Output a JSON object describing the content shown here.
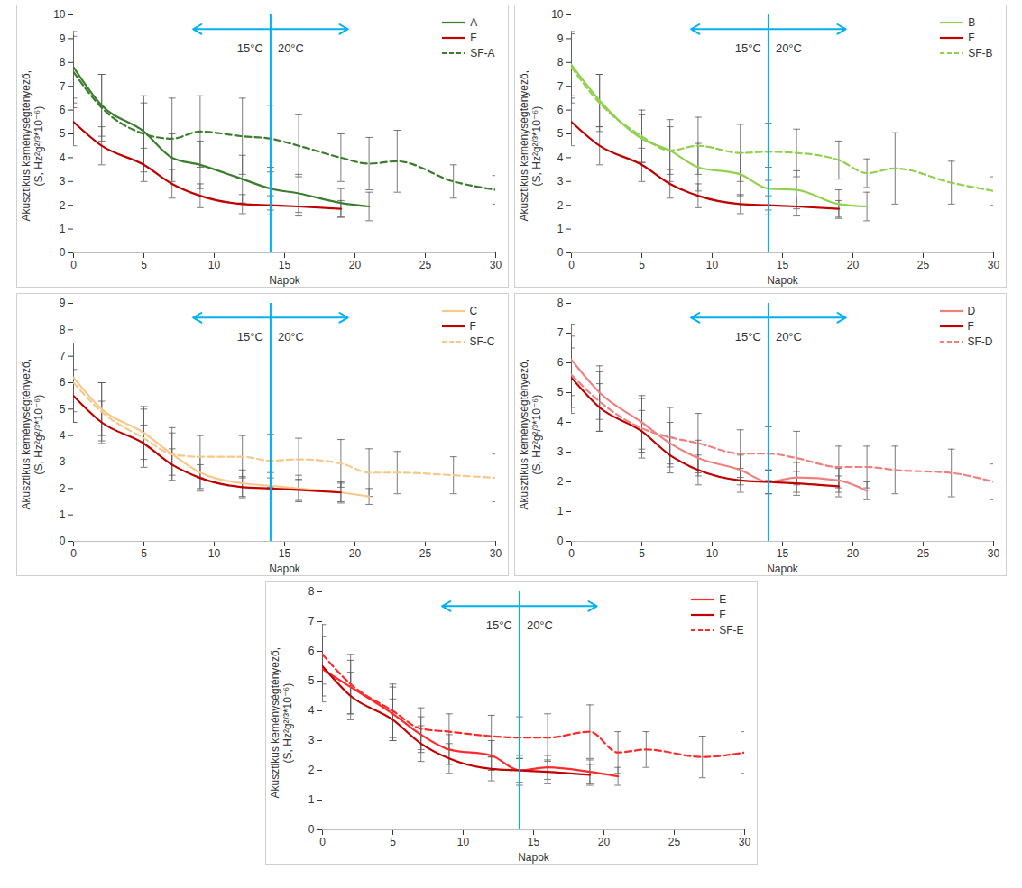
{
  "chart_data": [
    {
      "type": "line",
      "x_label": "Napok",
      "y_label": "Akusztikus keménységtényező, (S, Hz²g²/³*10⁻⁶)",
      "xlim": [
        0,
        30
      ],
      "xticks": [
        0,
        5,
        10,
        15,
        20,
        25,
        30
      ],
      "ylim": [
        0,
        10
      ],
      "yticks": [
        0,
        1,
        2,
        3,
        4,
        5,
        6,
        7,
        8,
        9,
        10
      ],
      "grid": false,
      "legend": "top-right",
      "annotation": {
        "x": 14,
        "from_x": 8.5,
        "to_x": 19.5,
        "labels": [
          "15°C",
          "20°C"
        ],
        "color": "#00b0f0"
      },
      "series": [
        {
          "name": "A",
          "color": "#3a7d2c",
          "line_style": "solid",
          "x": [
            0,
            2,
            5,
            7,
            9,
            12,
            14,
            16,
            19,
            21
          ],
          "values": [
            7.8,
            6.2,
            5.1,
            4.0,
            3.7,
            3.1,
            2.7,
            2.5,
            2.1,
            1.95
          ],
          "errors": [
            1.5,
            1.3,
            1.2,
            1.0,
            1.0,
            1.0,
            0.9,
            0.8,
            0.6,
            0.6
          ]
        },
        {
          "name": "F",
          "color": "#c00000",
          "line_style": "solid",
          "x": [
            0,
            2,
            5,
            7,
            9,
            12,
            14,
            16,
            19
          ],
          "values": [
            5.5,
            4.5,
            3.7,
            2.9,
            2.4,
            2.05,
            2.0,
            1.95,
            1.85
          ],
          "errors": [
            1.0,
            0.8,
            0.7,
            0.6,
            0.5,
            0.4,
            0.4,
            0.4,
            0.35
          ]
        },
        {
          "name": "SF-A",
          "color": "#3a7d2c",
          "line_style": "dashed",
          "x": [
            0,
            2,
            5,
            7,
            9,
            12,
            14,
            16,
            19,
            21,
            23,
            27,
            30
          ],
          "values": [
            7.6,
            6.1,
            5.0,
            4.8,
            5.1,
            4.9,
            4.8,
            4.5,
            4.0,
            3.75,
            3.85,
            3.0,
            2.65
          ],
          "errors": [
            1.5,
            1.4,
            1.6,
            1.7,
            1.5,
            1.6,
            1.4,
            1.3,
            1.0,
            1.1,
            1.3,
            0.7,
            0.6
          ]
        }
      ]
    },
    {
      "type": "line",
      "x_label": "Napok",
      "y_label": "Akusztikus keménységtényező, (S, Hz²g²/³*10⁻⁶)",
      "xlim": [
        0,
        30
      ],
      "xticks": [
        0,
        5,
        10,
        15,
        20,
        25,
        30
      ],
      "ylim": [
        0,
        10
      ],
      "yticks": [
        0,
        1,
        2,
        3,
        4,
        5,
        6,
        7,
        8,
        9,
        10
      ],
      "grid": false,
      "legend": "top-right",
      "annotation": {
        "x": 14,
        "from_x": 8.5,
        "to_x": 19.5,
        "labels": [
          "15°C",
          "20°C"
        ],
        "color": "#00b0f0"
      },
      "series": [
        {
          "name": "B",
          "color": "#92d050",
          "line_style": "solid",
          "x": [
            0,
            2,
            5,
            7,
            9,
            12,
            14,
            16,
            19,
            21
          ],
          "values": [
            7.9,
            6.4,
            4.8,
            4.3,
            3.6,
            3.3,
            2.7,
            2.65,
            2.05,
            1.95
          ],
          "errors": [
            1.3,
            1.1,
            1.0,
            1.0,
            1.0,
            0.9,
            0.9,
            0.8,
            0.6,
            0.6
          ]
        },
        {
          "name": "F",
          "color": "#c00000",
          "line_style": "solid",
          "x": [
            0,
            2,
            5,
            7,
            9,
            12,
            14,
            16,
            19
          ],
          "values": [
            5.5,
            4.5,
            3.7,
            2.9,
            2.4,
            2.05,
            2.0,
            1.95,
            1.85
          ],
          "errors": [
            1.0,
            0.8,
            0.7,
            0.6,
            0.5,
            0.4,
            0.4,
            0.4,
            0.35
          ]
        },
        {
          "name": "SF-B",
          "color": "#92d050",
          "line_style": "dashed",
          "x": [
            0,
            2,
            5,
            7,
            9,
            12,
            14,
            16,
            19,
            21,
            23,
            27,
            30
          ],
          "values": [
            7.8,
            6.3,
            4.9,
            4.3,
            4.5,
            4.2,
            4.25,
            4.2,
            3.9,
            3.35,
            3.55,
            2.95,
            2.6
          ],
          "errors": [
            1.5,
            1.2,
            1.1,
            1.3,
            1.2,
            1.2,
            1.2,
            1.0,
            0.8,
            0.6,
            1.5,
            0.9,
            0.6
          ]
        }
      ]
    },
    {
      "type": "line",
      "x_label": "Napok",
      "y_label": "Akusztikus keménységtényező, (S, Hz²g²/³*10⁻⁶)",
      "xlim": [
        0,
        30
      ],
      "xticks": [
        0,
        5,
        10,
        15,
        20,
        25,
        30
      ],
      "ylim": [
        0,
        9
      ],
      "yticks": [
        0,
        1,
        2,
        3,
        4,
        5,
        6,
        7,
        8,
        9
      ],
      "grid": false,
      "legend": "top-right",
      "annotation": {
        "x": 14,
        "from_x": 8.5,
        "to_x": 19.5,
        "labels": [
          "15°C",
          "20°C"
        ],
        "color": "#00b0f0"
      },
      "series": [
        {
          "name": "C",
          "color": "#f8c88a",
          "line_style": "solid",
          "x": [
            0,
            2,
            5,
            7,
            9,
            12,
            14,
            16,
            19,
            21
          ],
          "values": [
            6.2,
            5.0,
            4.1,
            3.3,
            2.6,
            2.2,
            2.1,
            2.0,
            1.85,
            1.7
          ],
          "errors": [
            1.3,
            1.0,
            1.0,
            0.8,
            0.6,
            0.5,
            0.5,
            0.5,
            0.4,
            0.3
          ]
        },
        {
          "name": "F",
          "color": "#c00000",
          "line_style": "solid",
          "x": [
            0,
            2,
            5,
            7,
            9,
            12,
            14,
            16,
            19
          ],
          "values": [
            5.5,
            4.5,
            3.7,
            2.9,
            2.4,
            2.05,
            2.0,
            1.95,
            1.85
          ],
          "errors": [
            1.0,
            0.8,
            0.7,
            0.6,
            0.5,
            0.4,
            0.4,
            0.4,
            0.35
          ]
        },
        {
          "name": "SF-C",
          "color": "#f8c88a",
          "line_style": "dashed",
          "x": [
            0,
            2,
            5,
            7,
            9,
            12,
            14,
            16,
            19,
            21,
            23,
            27,
            30
          ],
          "values": [
            6.0,
            4.9,
            3.9,
            3.3,
            3.2,
            3.2,
            3.05,
            3.1,
            2.95,
            2.6,
            2.6,
            2.5,
            2.4
          ],
          "errors": [
            1.5,
            1.1,
            1.1,
            1.0,
            0.8,
            0.8,
            1.0,
            0.8,
            0.9,
            0.9,
            0.8,
            0.7,
            0.9
          ]
        }
      ]
    },
    {
      "type": "line",
      "x_label": "Napok",
      "y_label": "Akusztikus keménységtényező, (S, Hz²g²/³*10⁻⁶)",
      "xlim": [
        0,
        30
      ],
      "xticks": [
        0,
        5,
        10,
        15,
        20,
        25,
        30
      ],
      "ylim": [
        0,
        8
      ],
      "yticks": [
        0,
        1,
        2,
        3,
        4,
        5,
        6,
        7,
        8
      ],
      "grid": false,
      "legend": "top-right",
      "annotation": {
        "x": 14,
        "from_x": 8.5,
        "to_x": 19.5,
        "labels": [
          "15°C",
          "20°C"
        ],
        "color": "#00b0f0"
      },
      "series": [
        {
          "name": "D",
          "color": "#f08080",
          "line_style": "solid",
          "x": [
            0,
            2,
            5,
            7,
            9,
            12,
            14,
            16,
            19,
            21
          ],
          "values": [
            6.1,
            5.0,
            4.0,
            3.3,
            2.8,
            2.4,
            2.0,
            2.15,
            2.05,
            1.7
          ],
          "errors": [
            1.2,
            0.9,
            0.9,
            0.7,
            0.6,
            0.5,
            0.4,
            0.5,
            0.4,
            0.3
          ]
        },
        {
          "name": "F",
          "color": "#c00000",
          "line_style": "solid",
          "x": [
            0,
            2,
            5,
            7,
            9,
            12,
            14,
            16,
            19
          ],
          "values": [
            5.5,
            4.5,
            3.7,
            2.9,
            2.4,
            2.05,
            2.0,
            1.95,
            1.85
          ],
          "errors": [
            1.0,
            0.8,
            0.7,
            0.6,
            0.5,
            0.4,
            0.4,
            0.4,
            0.35
          ]
        },
        {
          "name": "SF-D",
          "color": "#f08080",
          "line_style": "dashed",
          "x": [
            0,
            2,
            5,
            7,
            9,
            12,
            14,
            16,
            19,
            21,
            23,
            27,
            30
          ],
          "values": [
            5.6,
            4.7,
            3.8,
            3.5,
            3.3,
            2.95,
            2.95,
            2.8,
            2.5,
            2.5,
            2.4,
            2.3,
            2.0
          ],
          "errors": [
            1.3,
            1.0,
            1.0,
            1.0,
            1.0,
            0.8,
            0.9,
            0.9,
            0.7,
            0.7,
            0.8,
            0.8,
            0.6
          ]
        }
      ]
    },
    {
      "type": "line",
      "x_label": "Napok",
      "y_label": "Akusztikus keménységtényező, (S, Hz²g²/³*10⁻⁶)",
      "xlim": [
        0,
        30
      ],
      "xticks": [
        0,
        5,
        10,
        15,
        20,
        25,
        30
      ],
      "ylim": [
        0,
        8
      ],
      "yticks": [
        0,
        1,
        2,
        3,
        4,
        5,
        6,
        7,
        8
      ],
      "grid": false,
      "legend": "top-right",
      "annotation": {
        "x": 14,
        "from_x": 8.5,
        "to_x": 19.5,
        "labels": [
          "15°C",
          "20°C"
        ],
        "color": "#00b0f0"
      },
      "series": [
        {
          "name": "E",
          "color": "#ff2a2a",
          "line_style": "solid",
          "x": [
            0,
            2,
            5,
            7,
            9,
            12,
            14,
            16,
            19,
            21
          ],
          "values": [
            5.4,
            4.8,
            3.9,
            3.2,
            2.7,
            2.5,
            2.0,
            2.1,
            1.95,
            1.8
          ],
          "errors": [
            1.1,
            0.9,
            0.9,
            0.6,
            0.5,
            0.5,
            0.5,
            0.4,
            0.4,
            0.3
          ]
        },
        {
          "name": "F",
          "color": "#c00000",
          "line_style": "solid",
          "x": [
            0,
            2,
            5,
            7,
            9,
            12,
            14,
            16,
            19
          ],
          "values": [
            5.5,
            4.5,
            3.7,
            2.9,
            2.4,
            2.05,
            2.0,
            1.95,
            1.85
          ],
          "errors": [
            1.0,
            0.8,
            0.7,
            0.6,
            0.5,
            0.4,
            0.4,
            0.4,
            0.35
          ]
        },
        {
          "name": "SF-E",
          "color": "#ff2a2a",
          "line_style": "dashed",
          "x": [
            0,
            2,
            5,
            7,
            9,
            12,
            14,
            16,
            19,
            21,
            23,
            27,
            30
          ],
          "values": [
            5.9,
            4.9,
            4.0,
            3.4,
            3.3,
            3.15,
            3.1,
            3.1,
            3.3,
            2.6,
            2.7,
            2.45,
            2.6
          ],
          "errors": [
            1.0,
            1.0,
            0.9,
            0.7,
            0.6,
            0.7,
            0.7,
            0.8,
            0.9,
            0.7,
            0.6,
            0.7,
            0.7
          ]
        }
      ]
    }
  ]
}
